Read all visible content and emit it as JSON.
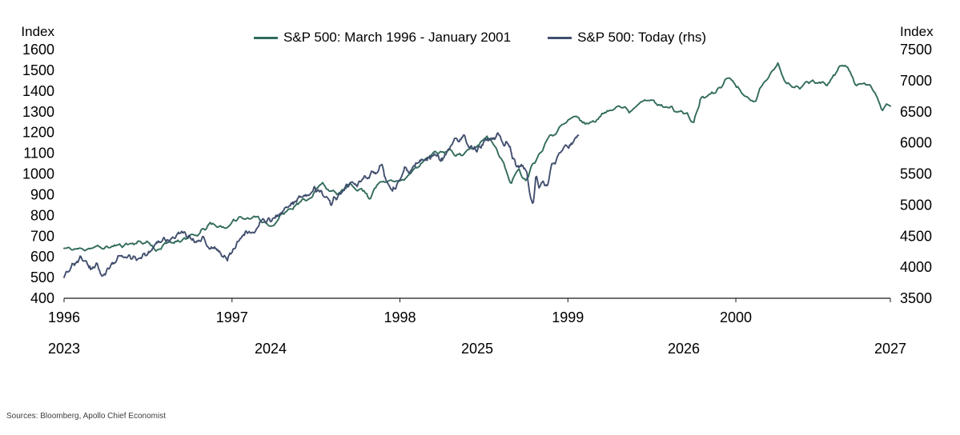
{
  "footer": {
    "source": "Sources: Bloomberg, Apollo Chief Economist"
  },
  "chart_data": {
    "type": "line",
    "title": "",
    "grid": false,
    "legend_position": "top-center",
    "left_axis": {
      "label": "Index",
      "ylim": [
        400,
        1600
      ],
      "tick_step": 100,
      "ticks": [
        400,
        500,
        600,
        700,
        800,
        900,
        1000,
        1100,
        1200,
        1300,
        1400,
        1500,
        1600
      ]
    },
    "right_axis": {
      "label": "Index",
      "ylim": [
        3500,
        7500
      ],
      "tick_step": 500,
      "ticks": [
        3500,
        4000,
        4500,
        5000,
        5500,
        6000,
        6500,
        7000,
        7500
      ]
    },
    "x_axis": {
      "top_labels": [
        "1996",
        "1997",
        "1998",
        "1999",
        "2000"
      ],
      "top_label_years": [
        1996,
        1997,
        1998,
        1999,
        2000
      ],
      "bottom_labels": [
        "2023",
        "2024",
        "2025",
        "2026",
        "2027"
      ],
      "bottom_label_years": [
        2023,
        2024,
        2025,
        2026,
        2027
      ]
    },
    "series": [
      {
        "name": "S&P 500: March 1996 - January 2001",
        "axis": "left",
        "color": "#316b5c",
        "x_domain": [
          1996,
          2000.92
        ],
        "points": [
          [
            1996.0,
            640
          ],
          [
            1996.08,
            636
          ],
          [
            1996.16,
            644
          ],
          [
            1996.25,
            645
          ],
          [
            1996.33,
            655
          ],
          [
            1996.42,
            668
          ],
          [
            1996.5,
            671
          ],
          [
            1996.55,
            632
          ],
          [
            1996.62,
            665
          ],
          [
            1996.71,
            687
          ],
          [
            1996.79,
            703
          ],
          [
            1996.87,
            757
          ],
          [
            1996.96,
            741
          ],
          [
            1997.04,
            786
          ],
          [
            1997.12,
            790
          ],
          [
            1997.21,
            764
          ],
          [
            1997.25,
            750
          ],
          [
            1997.29,
            801
          ],
          [
            1997.37,
            848
          ],
          [
            1997.46,
            885
          ],
          [
            1997.54,
            954
          ],
          [
            1997.58,
            925
          ],
          [
            1997.62,
            899
          ],
          [
            1997.71,
            947
          ],
          [
            1997.79,
            915
          ],
          [
            1997.82,
            880
          ],
          [
            1997.85,
            941
          ],
          [
            1997.88,
            955
          ],
          [
            1997.96,
            970
          ],
          [
            1998.04,
            980
          ],
          [
            1998.12,
            1049
          ],
          [
            1998.21,
            1101
          ],
          [
            1998.29,
            1112
          ],
          [
            1998.37,
            1091
          ],
          [
            1998.46,
            1134
          ],
          [
            1998.52,
            1187
          ],
          [
            1998.58,
            1121
          ],
          [
            1998.62,
            1041
          ],
          [
            1998.66,
            957
          ],
          [
            1998.71,
            1020
          ],
          [
            1998.75,
            970
          ],
          [
            1998.79,
            1050
          ],
          [
            1998.83,
            1098
          ],
          [
            1998.87,
            1164
          ],
          [
            1998.96,
            1229
          ],
          [
            1999.04,
            1280
          ],
          [
            1999.12,
            1238
          ],
          [
            1999.21,
            1286
          ],
          [
            1999.29,
            1335
          ],
          [
            1999.37,
            1302
          ],
          [
            1999.46,
            1373
          ],
          [
            1999.54,
            1329
          ],
          [
            1999.62,
            1320
          ],
          [
            1999.71,
            1283
          ],
          [
            1999.75,
            1247
          ],
          [
            1999.79,
            1363
          ],
          [
            1999.87,
            1389
          ],
          [
            1999.96,
            1469
          ],
          [
            2000.04,
            1394
          ],
          [
            2000.08,
            1360
          ],
          [
            2000.12,
            1366
          ],
          [
            2000.21,
            1499
          ],
          [
            2000.25,
            1527
          ],
          [
            2000.29,
            1452
          ],
          [
            2000.33,
            1420
          ],
          [
            2000.38,
            1421
          ],
          [
            2000.46,
            1455
          ],
          [
            2000.54,
            1431
          ],
          [
            2000.62,
            1518
          ],
          [
            2000.66,
            1520
          ],
          [
            2000.71,
            1436
          ],
          [
            2000.79,
            1429
          ],
          [
            2000.83,
            1398
          ],
          [
            2000.87,
            1315
          ],
          [
            2000.92,
            1340
          ]
        ]
      },
      {
        "name": "S&P 500: Today (rhs)",
        "axis": "right",
        "color": "#414f6e",
        "x_domain": [
          2023,
          2027
        ],
        "points": [
          [
            2023.0,
            3850
          ],
          [
            2023.05,
            4070
          ],
          [
            2023.09,
            4150
          ],
          [
            2023.13,
            3970
          ],
          [
            2023.16,
            4040
          ],
          [
            2023.19,
            3855
          ],
          [
            2023.24,
            4100
          ],
          [
            2023.29,
            4170
          ],
          [
            2023.33,
            4130
          ],
          [
            2023.38,
            4180
          ],
          [
            2023.42,
            4280
          ],
          [
            2023.46,
            4410
          ],
          [
            2023.5,
            4450
          ],
          [
            2023.54,
            4480
          ],
          [
            2023.58,
            4580
          ],
          [
            2023.62,
            4400
          ],
          [
            2023.67,
            4460
          ],
          [
            2023.71,
            4300
          ],
          [
            2023.75,
            4270
          ],
          [
            2023.79,
            4120
          ],
          [
            2023.83,
            4360
          ],
          [
            2023.87,
            4550
          ],
          [
            2023.92,
            4590
          ],
          [
            2023.96,
            4770
          ],
          [
            2024.0,
            4740
          ],
          [
            2024.04,
            4850
          ],
          [
            2024.08,
            4960
          ],
          [
            2024.12,
            5090
          ],
          [
            2024.17,
            5150
          ],
          [
            2024.21,
            5250
          ],
          [
            2024.25,
            5200
          ],
          [
            2024.29,
            5030
          ],
          [
            2024.33,
            5180
          ],
          [
            2024.37,
            5300
          ],
          [
            2024.42,
            5350
          ],
          [
            2024.46,
            5430
          ],
          [
            2024.5,
            5530
          ],
          [
            2024.54,
            5660
          ],
          [
            2024.56,
            5400
          ],
          [
            2024.59,
            5190
          ],
          [
            2024.63,
            5450
          ],
          [
            2024.65,
            5650
          ],
          [
            2024.67,
            5520
          ],
          [
            2024.71,
            5700
          ],
          [
            2024.75,
            5760
          ],
          [
            2024.79,
            5810
          ],
          [
            2024.82,
            5700
          ],
          [
            2024.85,
            5780
          ],
          [
            2024.87,
            5970
          ],
          [
            2024.9,
            6030
          ],
          [
            2024.94,
            6090
          ],
          [
            2024.96,
            5970
          ],
          [
            2024.98,
            5880
          ],
          [
            2025.02,
            5910
          ],
          [
            2025.04,
            6040
          ],
          [
            2025.08,
            6070
          ],
          [
            2025.1,
            6140
          ],
          [
            2025.13,
            5950
          ],
          [
            2025.15,
            6000
          ],
          [
            2025.17,
            5780
          ],
          [
            2025.19,
            5610
          ],
          [
            2025.22,
            5670
          ],
          [
            2025.24,
            5540
          ],
          [
            2025.26,
            5060
          ],
          [
            2025.27,
            4985
          ],
          [
            2025.285,
            5460
          ],
          [
            2025.3,
            5290
          ],
          [
            2025.32,
            5380
          ],
          [
            2025.34,
            5290
          ],
          [
            2025.36,
            5690
          ],
          [
            2025.38,
            5660
          ],
          [
            2025.4,
            5840
          ],
          [
            2025.42,
            5920
          ],
          [
            2025.44,
            5940
          ],
          [
            2025.46,
            6000
          ],
          [
            2025.49,
            6150
          ]
        ]
      }
    ]
  }
}
